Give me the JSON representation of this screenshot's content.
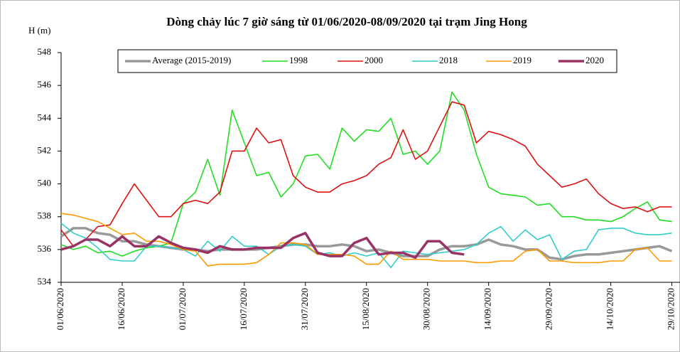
{
  "chart_data": {
    "type": "line",
    "title": "Dòng chảy lúc 7 giờ sáng từ 01/06/2020-08/09/2020 tại trạm Jing Hong",
    "y_label": "H (m)",
    "x": [
      "01/06/2020",
      "04/06/2020",
      "07/06/2020",
      "10/06/2020",
      "13/06/2020",
      "16/06/2020",
      "19/06/2020",
      "22/06/2020",
      "25/06/2020",
      "28/06/2020",
      "01/07/2020",
      "04/07/2020",
      "07/07/2020",
      "10/07/2020",
      "13/07/2020",
      "16/07/2020",
      "19/07/2020",
      "22/07/2020",
      "25/07/2020",
      "28/07/2020",
      "31/07/2020",
      "03/08/2020",
      "06/08/2020",
      "09/08/2020",
      "12/08/2020",
      "15/08/2020",
      "18/08/2020",
      "21/08/2020",
      "24/08/2020",
      "27/08/2020",
      "30/08/2020",
      "02/09/2020",
      "05/09/2020",
      "08/09/2020",
      "11/09/2020",
      "14/09/2020",
      "17/09/2020",
      "20/09/2020",
      "23/09/2020",
      "26/09/2020",
      "29/09/2020",
      "02/10/2020",
      "05/10/2020",
      "08/10/2020",
      "11/10/2020",
      "14/10/2020",
      "17/10/2020",
      "20/10/2020",
      "23/10/2020",
      "26/10/2020",
      "29/10/2020"
    ],
    "xlim": [
      "01/06/2020",
      "31/10/2020"
    ],
    "xticks": [
      "01/06/2020",
      "16/06/2020",
      "01/07/2020",
      "16/07/2020",
      "31/07/2020",
      "15/08/2020",
      "30/08/2020",
      "14/09/2020",
      "29/09/2020",
      "14/10/2020",
      "29/10/2020"
    ],
    "ylim": [
      534,
      548
    ],
    "yticks": [
      534,
      536,
      538,
      540,
      542,
      544,
      546,
      548
    ],
    "legend": "top",
    "series": [
      {
        "name": "Average (2015-2019)",
        "color": "#999999",
        "values": [
          536.8,
          537.3,
          537.3,
          537,
          536.9,
          536.5,
          536.5,
          536.3,
          536.2,
          536.1,
          536,
          536,
          535.9,
          536,
          536,
          536,
          536,
          536.1,
          536.2,
          536.3,
          536.3,
          536.2,
          536.2,
          536.3,
          536.2,
          535.9,
          536,
          535.8,
          535.6,
          535.6,
          535.6,
          536,
          536.2,
          536.2,
          536.3,
          536.6,
          536.3,
          536.2,
          536,
          536,
          535.5,
          535.4,
          535.6,
          535.7,
          535.7,
          535.8,
          535.9,
          536,
          536.1,
          536.2,
          535.9
        ]
      },
      {
        "name": "1998",
        "color": "#22dd22",
        "values": [
          536.3,
          536,
          536.2,
          535.8,
          535.9,
          535.6,
          535.9,
          536.1,
          536.2,
          536.4,
          538.8,
          539.5,
          541.5,
          539.3,
          544.5,
          542.5,
          540.5,
          540.7,
          539.2,
          540,
          541.7,
          541.8,
          540.9,
          543.4,
          542.6,
          543.3,
          543.2,
          544,
          541.8,
          542,
          541.2,
          542,
          545.6,
          544.5,
          541.8,
          539.8,
          539.4,
          539.3,
          539.2,
          538.7,
          538.8,
          538,
          538,
          537.8,
          537.8,
          537.7,
          538,
          538.5,
          538.9,
          537.8,
          537.7
        ]
      },
      {
        "name": "2000",
        "color": "#dd1111",
        "values": [
          537.2,
          536.2,
          536.6,
          537.4,
          537.5,
          538.8,
          540,
          539,
          538,
          538,
          538.8,
          539,
          538.8,
          539.5,
          542,
          542,
          543.4,
          542.5,
          542.7,
          540.5,
          539.8,
          539.5,
          539.5,
          540,
          540.2,
          540.5,
          541.2,
          541.6,
          543.3,
          541.5,
          542,
          543.5,
          545,
          544.8,
          542.5,
          543.2,
          543,
          542.7,
          542.3,
          541.2,
          540.5,
          539.8,
          540,
          540.3,
          539.4,
          538.8,
          538.5,
          538.6,
          538.3,
          538.6,
          538.6
        ]
      },
      {
        "name": "2018",
        "color": "#33cccc",
        "values": [
          537.6,
          537,
          536.7,
          536.1,
          535.4,
          535.3,
          535.3,
          536.2,
          536.2,
          536.1,
          536,
          535.6,
          536.5,
          535.9,
          536.8,
          536.2,
          536.2,
          535.7,
          536.2,
          536.3,
          536.2,
          535.7,
          535.8,
          535.6,
          535.8,
          535.6,
          535.8,
          534.9,
          535.9,
          535.8,
          535.7,
          535.8,
          535.9,
          536,
          536.3,
          537,
          537.4,
          536.5,
          537.2,
          536.6,
          536.9,
          535.4,
          535.9,
          536,
          537.2,
          537.3,
          537.3,
          537,
          536.9,
          536.9,
          537
        ]
      },
      {
        "name": "2019",
        "color": "#ff9900",
        "values": [
          538.2,
          538.1,
          537.9,
          537.7,
          537.3,
          536.9,
          537,
          536.5,
          536.5,
          536.3,
          536,
          535.9,
          535,
          535.1,
          535.1,
          535.1,
          535.2,
          535.7,
          536.4,
          536.4,
          536.3,
          535.7,
          535.7,
          535.7,
          535.6,
          535.1,
          535.1,
          535.9,
          535.4,
          535.4,
          535.4,
          535.3,
          535.3,
          535.3,
          535.2,
          535.2,
          535.3,
          535.3,
          535.9,
          536,
          535.3,
          535.3,
          535.2,
          535.2,
          535.2,
          535.3,
          535.3,
          536,
          536.1,
          535.3,
          535.3
        ]
      },
      {
        "name": "2020",
        "color": "#993366",
        "values": [
          536,
          536.2,
          536.6,
          536.6,
          536.2,
          536.8,
          536.2,
          536.2,
          536.8,
          536.4,
          536.1,
          536,
          535.8,
          536.2,
          536,
          536,
          536.1,
          536.1,
          536.1,
          536.7,
          537,
          535.8,
          535.6,
          535.6,
          536.4,
          536.7,
          535.7,
          535.8,
          535.8,
          535.5,
          536.5,
          536.5,
          535.8,
          535.7,
          null,
          null,
          null,
          null,
          null,
          null,
          null,
          null,
          null,
          null,
          null,
          null,
          null,
          null,
          null,
          null,
          null
        ]
      }
    ]
  }
}
